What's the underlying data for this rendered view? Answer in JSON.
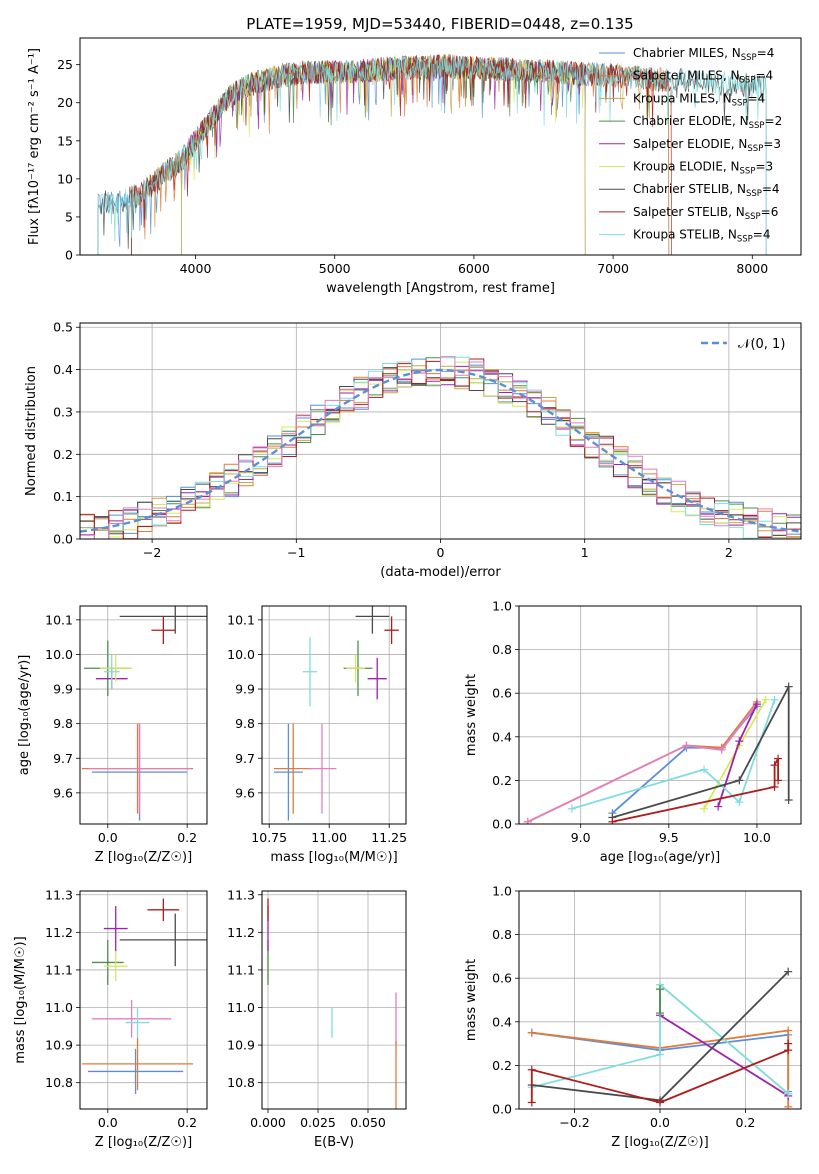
{
  "figure": {
    "title": "PLATE=1959, MJD=53440, FIBERID=0448, z=0.135"
  },
  "colors": {
    "Chabrier MILES": "#5b8fd9",
    "Salpeter MILES": "#e07b39",
    "Kroupa MILES": "#c7a54a",
    "Chabrier ELODIE": "#4e8f4e",
    "Salpeter ELODIE": "#a020b0",
    "Kroupa ELODIE": "#d8e85a",
    "Chabrier STELIB": "#4a4a4a",
    "Salpeter STELIB": "#b01c1c",
    "Kroupa STELIB": "#7fdde0",
    "pink": "#e27fc2",
    "gauss": "#5b8fd9"
  },
  "chart_data": [
    {
      "id": "spectrum",
      "type": "line",
      "title": "PLATE=1959, MJD=53440, FIBERID=0448, z=0.135",
      "xlabel": "wavelength [Angstrom, rest frame]",
      "ylabel": "Flux [fλ10⁻¹⁷ erg cm⁻² s⁻¹ A⁻¹]",
      "xlim": [
        3170,
        8350
      ],
      "ylim": [
        0,
        28.5
      ],
      "xticks": [
        4000,
        5000,
        6000,
        7000,
        8000
      ],
      "yticks": [
        0,
        5,
        10,
        15,
        20,
        25
      ],
      "legend": "upper right",
      "data_x": [
        3300,
        3400,
        3500,
        3600,
        3700,
        3800,
        3900,
        4000,
        4100,
        4200,
        4300,
        4400,
        4600,
        4800,
        5000,
        5200,
        5400,
        5600,
        5800,
        6000,
        6200,
        6400,
        6600,
        6800,
        7000,
        7200,
        7400,
        7600,
        7800,
        8000,
        8100
      ],
      "data_y": [
        6.8,
        7.0,
        7.2,
        8.0,
        9.5,
        11.0,
        12.5,
        15.0,
        17.5,
        20.0,
        21.5,
        22.5,
        23.5,
        24.0,
        24.0,
        24.2,
        24.5,
        24.6,
        24.8,
        24.5,
        24.4,
        24.2,
        24.0,
        23.8,
        23.6,
        23.2,
        23.0,
        22.8,
        22.5,
        22.2,
        22.0
      ],
      "series": [
        {
          "name": "Chabrier MILES, N_SSP=4",
          "label": "Chabrier MILES, N",
          "sub": "SSP",
          "tail": "=4",
          "xrange": [
            3300,
            7400
          ]
        },
        {
          "name": "Salpeter MILES, N_SSP=4",
          "label": "Salpeter MILES, N",
          "sub": "SSP",
          "tail": "=4",
          "xrange": [
            3540,
            7400
          ]
        },
        {
          "name": "Kroupa MILES, N_SSP=4",
          "label": "Kroupa MILES, N",
          "sub": "SSP",
          "tail": "=4",
          "xrange": [
            3540,
            7400
          ]
        },
        {
          "name": "Chabrier ELODIE, N_SSP=2",
          "label": "Chabrier ELODIE, N",
          "sub": "SSP",
          "tail": "=2",
          "xrange": [
            3900,
            6800
          ]
        },
        {
          "name": "Salpeter ELODIE, N_SSP=3",
          "label": "Salpeter ELODIE, N",
          "sub": "SSP",
          "tail": "=3",
          "xrange": [
            3900,
            6800
          ]
        },
        {
          "name": "Kroupa ELODIE, N_SSP=3",
          "label": "Kroupa ELODIE, N",
          "sub": "SSP",
          "tail": "=3",
          "xrange": [
            3900,
            6800
          ]
        },
        {
          "name": "Chabrier STELIB, N_SSP=4",
          "label": "Chabrier STELIB, N",
          "sub": "SSP",
          "tail": "=4",
          "xrange": [
            3300,
            8100
          ]
        },
        {
          "name": "Salpeter STELIB, N_SSP=6",
          "label": "Salpeter STELIB, N",
          "sub": "SSP",
          "tail": "=6",
          "xrange": [
            3540,
            7420
          ]
        },
        {
          "name": "Kroupa STELIB, N_SSP=4",
          "label": "Kroupa STELIB, N",
          "sub": "SSP",
          "tail": "=4",
          "xrange": [
            3300,
            8100
          ]
        }
      ]
    },
    {
      "id": "residuals",
      "type": "line",
      "xlabel": "(data-model)/error",
      "ylabel": "Normed distribution",
      "xlim": [
        -2.5,
        2.5
      ],
      "ylim": [
        0,
        0.51
      ],
      "xticks": [
        -2,
        -1,
        0,
        1,
        2
      ],
      "xticklabels": [
        "−2",
        "−1",
        "0",
        "1",
        "2"
      ],
      "yticks": [
        0.0,
        0.1,
        0.2,
        0.3,
        0.4,
        0.5
      ],
      "yticklabels": [
        "0.0",
        "0.1",
        "0.2",
        "0.3",
        "0.4",
        "0.5"
      ],
      "legend": "upper right",
      "gauss_label": "𝒩(0, 1)",
      "bin_width": 0.1
    },
    {
      "id": "age_vs_Z",
      "type": "scatter",
      "xlabel": "Z [log₁₀(Z/Z☉)]",
      "ylabel": "age  [log₁₀(age/yr)]",
      "xlim": [
        -0.07,
        0.25
      ],
      "ylim": [
        9.51,
        10.14
      ],
      "xticks": [
        0.0,
        0.2
      ],
      "xticklabels": [
        "0.0",
        "0.2"
      ],
      "yticks": [
        9.6,
        9.7,
        9.8,
        9.9,
        10.0,
        10.1
      ],
      "yticklabels": [
        "9.6",
        "9.7",
        "9.8",
        "9.9",
        "10.0",
        "10.1"
      ],
      "points": [
        {
          "series": "Chabrier MILES",
          "x": 0.08,
          "y": 9.66,
          "xerr": 0.12,
          "yerr": 0.14
        },
        {
          "series": "Salpeter MILES",
          "x": 0.075,
          "y": 9.67,
          "xerr": 0.14,
          "yerr": 0.13
        },
        {
          "series": "pink",
          "x": 0.08,
          "y": 9.67,
          "xerr": 0.13,
          "yerr": 0.13
        },
        {
          "series": "Chabrier ELODIE",
          "x": 0.0,
          "y": 9.96,
          "xerr": 0.06,
          "yerr": 0.08
        },
        {
          "series": "Salpeter ELODIE",
          "x": 0.01,
          "y": 9.93,
          "xerr": 0.04,
          "yerr": 0.03
        },
        {
          "series": "Kroupa ELODIE",
          "x": 0.02,
          "y": 9.96,
          "xerr": 0.04,
          "yerr": 0.04
        },
        {
          "series": "Kroupa STELIB",
          "x": 0.01,
          "y": 9.95,
          "xerr": 0.02,
          "yerr": 0.05
        },
        {
          "series": "Chabrier STELIB",
          "x": 0.17,
          "y": 10.11,
          "xerr": 0.14,
          "yerr": 0.05
        },
        {
          "series": "Salpeter STELIB",
          "x": 0.14,
          "y": 10.07,
          "xerr": 0.03,
          "yerr": 0.04
        }
      ]
    },
    {
      "id": "age_vs_mass",
      "type": "scatter",
      "xlabel": "mass [log₁₀(M/M☉)]",
      "ylabel": "",
      "xlim": [
        10.72,
        11.32
      ],
      "ylim": [
        9.51,
        10.14
      ],
      "xticks": [
        10.75,
        11.0,
        11.25
      ],
      "xticklabels": [
        "10.75",
        "11.00",
        "11.25"
      ],
      "yticks": [
        9.6,
        9.7,
        9.8,
        9.9,
        10.0,
        10.1
      ],
      "yticklabels": [
        "9.6",
        "9.7",
        "9.8",
        "9.9",
        "10.0",
        "10.1"
      ],
      "points": [
        {
          "series": "Chabrier MILES",
          "x": 10.83,
          "y": 9.66,
          "xerr": 0.06,
          "yerr": 0.14
        },
        {
          "series": "Salpeter MILES",
          "x": 10.85,
          "y": 9.67,
          "xerr": 0.08,
          "yerr": 0.13
        },
        {
          "series": "pink",
          "x": 10.97,
          "y": 9.67,
          "xerr": 0.06,
          "yerr": 0.13
        },
        {
          "series": "Kroupa STELIB",
          "x": 10.92,
          "y": 9.95,
          "xerr": 0.03,
          "yerr": 0.1
        },
        {
          "series": "Chabrier ELODIE",
          "x": 11.12,
          "y": 9.96,
          "xerr": 0.06,
          "yerr": 0.08
        },
        {
          "series": "Kroupa ELODIE",
          "x": 11.11,
          "y": 9.96,
          "xerr": 0.04,
          "yerr": 0.04
        },
        {
          "series": "Salpeter ELODIE",
          "x": 11.2,
          "y": 9.93,
          "xerr": 0.04,
          "yerr": 0.06
        },
        {
          "series": "Chabrier STELIB",
          "x": 11.18,
          "y": 10.11,
          "xerr": 0.07,
          "yerr": 0.05
        },
        {
          "series": "Salpeter STELIB",
          "x": 11.26,
          "y": 10.07,
          "xerr": 0.03,
          "yerr": 0.04
        }
      ]
    },
    {
      "id": "mass_weight_vs_age",
      "type": "line",
      "xlabel": "age  [log₁₀(age/yr)]",
      "ylabel": "mass weight",
      "xlim": [
        8.65,
        10.25
      ],
      "ylim": [
        0,
        1.0
      ],
      "xticks": [
        9.0,
        9.5,
        10.0
      ],
      "xticklabels": [
        "9.0",
        "9.5",
        "10.0"
      ],
      "yticks": [
        0.0,
        0.2,
        0.4,
        0.6,
        0.8,
        1.0
      ],
      "yticklabels": [
        "0.0",
        "0.2",
        "0.4",
        "0.6",
        "0.8",
        "1.0"
      ],
      "series": [
        {
          "name": "Chabrier MILES",
          "x": [
            9.18,
            9.6,
            9.8,
            10.0
          ],
          "y": [
            0.05,
            0.35,
            0.35,
            0.54
          ]
        },
        {
          "name": "Salpeter MILES",
          "x": [
            8.7,
            9.6,
            9.8,
            10.0
          ],
          "y": [
            0.01,
            0.36,
            0.35,
            0.56
          ]
        },
        {
          "name": "pink",
          "x": [
            8.7,
            9.6,
            9.8,
            10.0
          ],
          "y": [
            0.01,
            0.36,
            0.34,
            0.55
          ]
        },
        {
          "name": "Kroupa ELODIE",
          "x": [
            9.7,
            9.9,
            10.05
          ],
          "y": [
            0.07,
            0.36,
            0.57
          ]
        },
        {
          "name": "Salpeter ELODIE",
          "x": [
            9.78,
            9.9,
            10.0
          ],
          "y": [
            0.08,
            0.38,
            0.55
          ]
        },
        {
          "name": "Kroupa STELIB",
          "x": [
            8.95,
            9.7,
            9.9,
            10.1
          ],
          "y": [
            0.07,
            0.25,
            0.1,
            0.57
          ]
        },
        {
          "name": "Chabrier STELIB",
          "x": [
            9.18,
            9.9,
            10.18,
            10.18
          ],
          "y": [
            0.03,
            0.2,
            0.63,
            0.11
          ]
        },
        {
          "name": "Salpeter STELIB",
          "x": [
            9.18,
            10.1,
            10.1,
            10.12,
            10.12
          ],
          "y": [
            0.01,
            0.17,
            0.27,
            0.3,
            0.2
          ]
        }
      ]
    },
    {
      "id": "mass_vs_Z",
      "type": "scatter",
      "xlabel": "Z [log₁₀(Z/Z☉)]",
      "ylabel": "mass [log₁₀(M/M☉)]",
      "xlim": [
        -0.07,
        0.25
      ],
      "ylim": [
        10.73,
        11.31
      ],
      "xticks": [
        0.0,
        0.2
      ],
      "xticklabels": [
        "0.0",
        "0.2"
      ],
      "yticks": [
        10.8,
        10.9,
        11.0,
        11.1,
        11.2,
        11.3
      ],
      "yticklabels": [
        "10.8",
        "10.9",
        "11.0",
        "11.1",
        "11.2",
        "11.3"
      ],
      "points": [
        {
          "series": "Chabrier MILES",
          "x": 0.07,
          "y": 10.83,
          "xerr": 0.12,
          "yerr": 0.06
        },
        {
          "series": "Salpeter MILES",
          "x": 0.075,
          "y": 10.85,
          "xerr": 0.14,
          "yerr": 0.07
        },
        {
          "series": "pink",
          "x": 0.06,
          "y": 10.97,
          "xerr": 0.1,
          "yerr": 0.05
        },
        {
          "series": "Kroupa STELIB",
          "x": 0.075,
          "y": 10.96,
          "xerr": 0.03,
          "yerr": 0.04
        },
        {
          "series": "Chabrier ELODIE",
          "x": 0.0,
          "y": 11.12,
          "xerr": 0.04,
          "yerr": 0.06
        },
        {
          "series": "Kroupa ELODIE",
          "x": 0.02,
          "y": 11.11,
          "xerr": 0.03,
          "yerr": 0.04
        },
        {
          "series": "Salpeter ELODIE",
          "x": 0.02,
          "y": 11.21,
          "xerr": 0.03,
          "yerr": 0.06
        },
        {
          "series": "Chabrier STELIB",
          "x": 0.17,
          "y": 11.18,
          "xerr": 0.14,
          "yerr": 0.07
        },
        {
          "series": "Salpeter STELIB",
          "x": 0.14,
          "y": 11.26,
          "xerr": 0.04,
          "yerr": 0.03
        }
      ]
    },
    {
      "id": "mass_vs_ebv",
      "type": "scatter",
      "xlabel": "E(B-V)",
      "ylabel": "",
      "xlim": [
        -0.003,
        0.069
      ],
      "ylim": [
        10.73,
        11.31
      ],
      "xticks": [
        0.0,
        0.025,
        0.05
      ],
      "xticklabels": [
        "0.000",
        "0.025",
        "0.050"
      ],
      "yticks": [
        10.8,
        10.9,
        11.0,
        11.1,
        11.2,
        11.3
      ],
      "yticklabels": [
        "10.8",
        "10.9",
        "11.0",
        "11.1",
        "11.2",
        "11.3"
      ],
      "points": [
        {
          "series": "Kroupa ELODIE",
          "x": 0.0,
          "y": 11.11,
          "xerr": 0.0,
          "yerr": 0.04
        },
        {
          "series": "Chabrier ELODIE",
          "x": 0.0,
          "y": 11.12,
          "xerr": 0.0,
          "yerr": 0.06
        },
        {
          "series": "Salpeter ELODIE",
          "x": 0.0,
          "y": 11.21,
          "xerr": 0.0,
          "yerr": 0.06
        },
        {
          "series": "Salpeter STELIB",
          "x": 0.0,
          "y": 11.26,
          "xerr": 0.0,
          "yerr": 0.03
        },
        {
          "series": "Kroupa STELIB",
          "x": 0.032,
          "y": 10.96,
          "xerr": 0.0,
          "yerr": 0.04
        },
        {
          "series": "pink",
          "x": 0.064,
          "y": 10.97,
          "xerr": 0.0,
          "yerr": 0.07
        },
        {
          "series": "Salpeter MILES",
          "x": 0.064,
          "y": 10.82,
          "xerr": 0.0,
          "yerr": 0.09
        }
      ]
    },
    {
      "id": "mass_weight_vs_Z",
      "type": "line",
      "xlabel": "Z [log₁₀(Z/Z☉)]",
      "ylabel": "mass weight",
      "xlim": [
        -0.33,
        0.33
      ],
      "ylim": [
        0,
        1.0
      ],
      "xticks": [
        -0.2,
        0.0,
        0.2
      ],
      "xticklabels": [
        "−0.2",
        "0.0",
        "0.2"
      ],
      "yticks": [
        0.0,
        0.2,
        0.4,
        0.6,
        0.8,
        1.0
      ],
      "yticklabels": [
        "0.0",
        "0.2",
        "0.4",
        "0.6",
        "0.8",
        "1.0"
      ],
      "series": [
        {
          "name": "Chabrier MILES",
          "x": [
            -0.3,
            0.0,
            0.3,
            0.3
          ],
          "y": [
            0.35,
            0.27,
            0.34,
            0.08
          ]
        },
        {
          "name": "Salpeter MILES",
          "x": [
            -0.3,
            0.0,
            0.3,
            0.3
          ],
          "y": [
            0.35,
            0.28,
            0.36,
            0.01
          ]
        },
        {
          "name": "Salpeter ELODIE",
          "x": [
            0.0,
            0.0,
            0.3
          ],
          "y": [
            0.55,
            0.43,
            0.06
          ]
        },
        {
          "name": "Kroupa ELODIE",
          "x": [
            0.0,
            0.3
          ],
          "y": [
            0.57,
            0.07
          ]
        },
        {
          "name": "Kroupa STELIB",
          "x": [
            -0.3,
            0.0,
            0.0,
            0.3
          ],
          "y": [
            0.1,
            0.25,
            0.57,
            0.07
          ]
        },
        {
          "name": "Chabrier ELODIE",
          "x": [
            0.0,
            0.0
          ],
          "y": [
            0.44,
            0.55
          ]
        },
        {
          "name": "Chabrier STELIB",
          "x": [
            -0.3,
            0.0,
            0.3
          ],
          "y": [
            0.11,
            0.04,
            0.63
          ]
        },
        {
          "name": "Salpeter STELIB",
          "x": [
            -0.3,
            -0.3,
            0.0,
            0.3,
            0.3
          ],
          "y": [
            0.03,
            0.18,
            0.03,
            0.27,
            0.3
          ]
        }
      ]
    }
  ]
}
